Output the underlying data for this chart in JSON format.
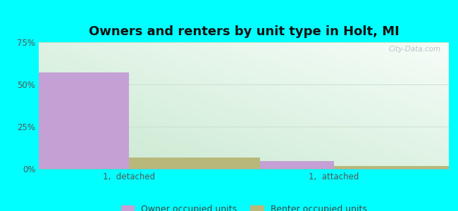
{
  "title": "Owners and renters by unit type in Holt, MI",
  "categories": [
    "1,  detached",
    "1,  attached"
  ],
  "owner_values": [
    57.0,
    4.5
  ],
  "renter_values": [
    6.5,
    1.5
  ],
  "owner_color": "#c4a0d4",
  "renter_color": "#b8b87a",
  "bar_width": 0.32,
  "ylim": [
    0,
    75
  ],
  "yticks": [
    0,
    25,
    50,
    75
  ],
  "ytick_labels": [
    "0%",
    "25%",
    "50%",
    "75%"
  ],
  "title_fontsize": 13,
  "tick_fontsize": 8.5,
  "legend_fontsize": 9,
  "outer_bg": "#00ffff",
  "watermark": "City-Data.com"
}
